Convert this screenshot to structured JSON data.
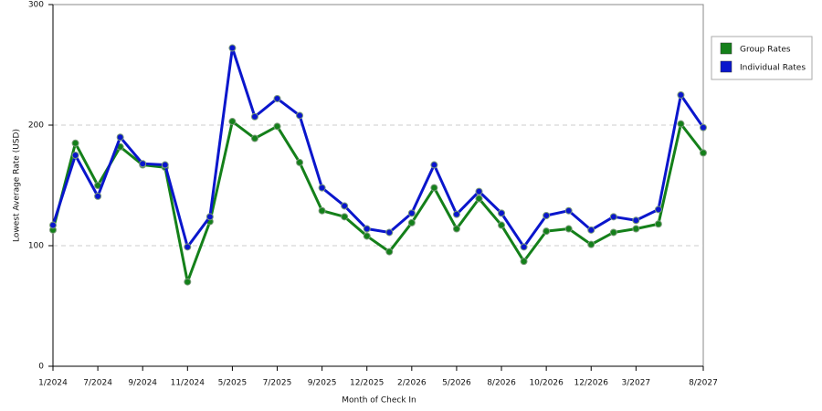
{
  "chart_data": {
    "type": "line",
    "x_label": "Month of Check In",
    "y_label": "Lowest Average Rate (USD)",
    "categories": [
      "1/2024",
      null,
      "7/2024",
      null,
      "9/2024",
      null,
      "11/2024",
      null,
      "5/2025",
      null,
      "7/2025",
      null,
      "9/2025",
      null,
      "12/2025",
      null,
      "2/2026",
      null,
      "5/2026",
      null,
      "8/2026",
      null,
      "10/2026",
      null,
      "12/2026",
      null,
      "3/2027",
      null,
      null,
      "8/2027"
    ],
    "series": [
      {
        "name": "Group Rates",
        "color": "#14801a",
        "values": [
          113,
          185,
          150,
          182,
          167,
          165,
          70,
          120,
          203,
          189,
          199,
          169,
          129,
          124,
          108,
          95,
          119,
          148,
          114,
          139,
          117,
          87,
          112,
          114,
          101,
          111,
          114,
          118,
          201,
          177
        ]
      },
      {
        "name": "Individual Rates",
        "color": "#0a16cc",
        "values": [
          117,
          175,
          141,
          190,
          168,
          167,
          99,
          124,
          264,
          207,
          222,
          208,
          148,
          133,
          114,
          111,
          127,
          167,
          126,
          145,
          127,
          99,
          125,
          129,
          113,
          124,
          121,
          130,
          225,
          198
        ]
      }
    ],
    "ylim": [
      0,
      300
    ],
    "yticks": [
      0,
      100,
      200,
      300
    ],
    "grid": true,
    "legend": "right"
  }
}
